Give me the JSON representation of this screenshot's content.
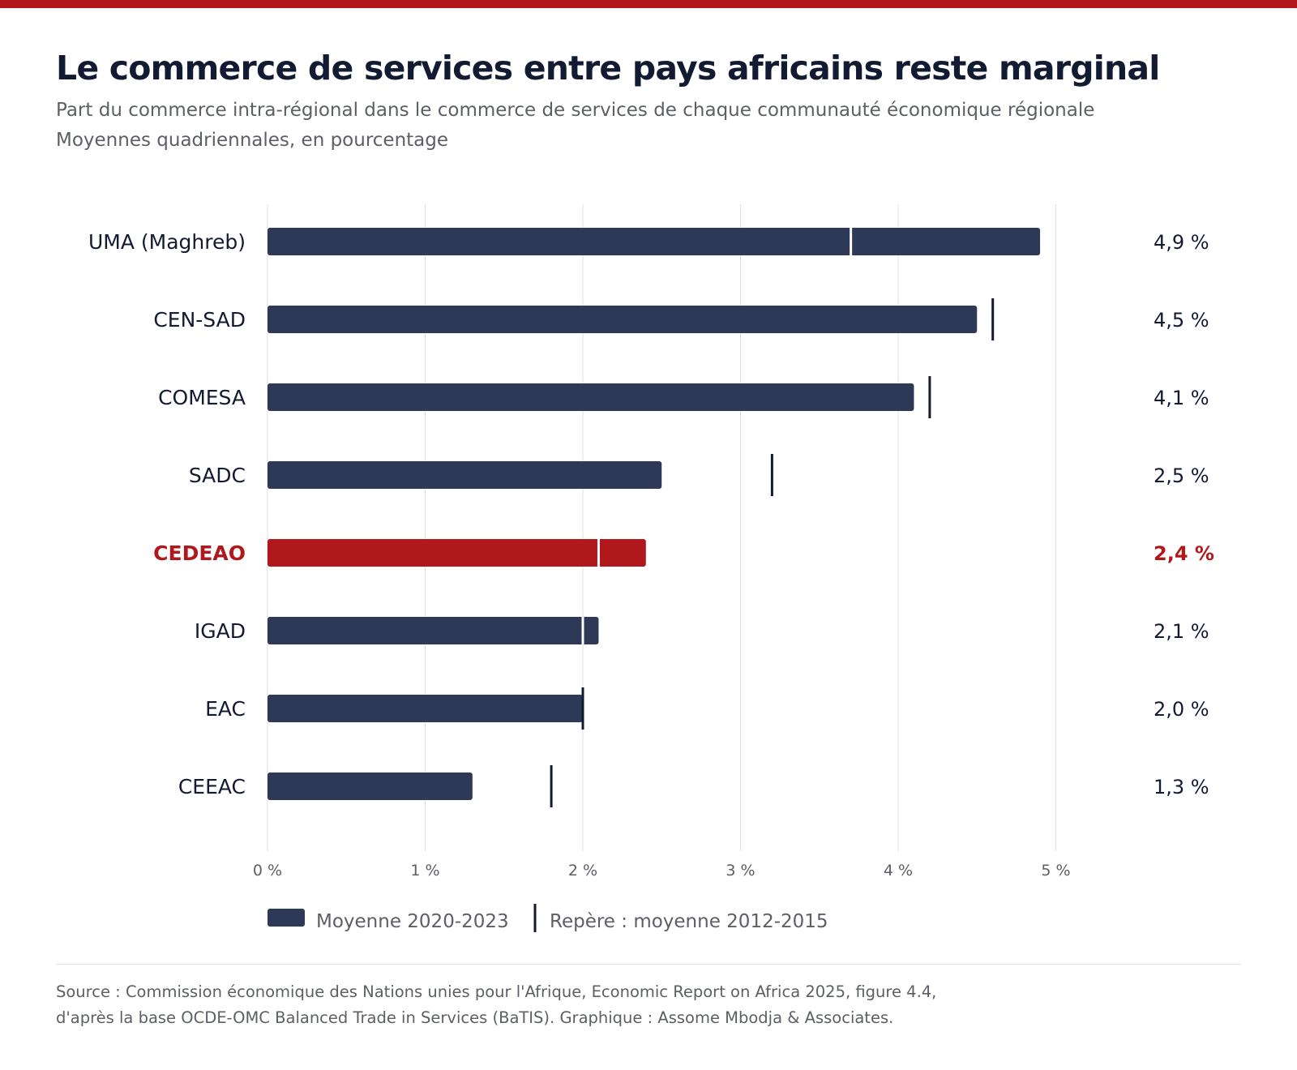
{
  "header": {
    "title": "Le commerce de services entre pays africains reste marginal",
    "subtitle_line1": "Part du commerce intra-régional dans le commerce de services de chaque communauté économique régionale",
    "subtitle_line2": "Moyennes quadriennales, en pourcentage"
  },
  "colors": {
    "top_band": "#b0181c",
    "bar": "#2d3956",
    "highlight": "#b0181c",
    "marker": "#131b33",
    "gridline": "#e0e0e0",
    "label_text": "#131b33",
    "tick_text": "#5c5f66"
  },
  "chart_data": {
    "type": "bar",
    "orientation": "horizontal",
    "categories": [
      "UMA (Maghreb)",
      "CEN-SAD",
      "COMESA",
      "SADC",
      "CEDEAO",
      "IGAD",
      "EAC",
      "CEEAC"
    ],
    "series": [
      {
        "name": "Moyenne 2020-2023",
        "values": [
          4.9,
          4.5,
          4.1,
          2.5,
          2.4,
          2.1,
          2.0,
          1.3
        ],
        "labels": [
          "4,9 %",
          "4,5 %",
          "4,1 %",
          "2,5 %",
          "2,4 %",
          "2,1 %",
          "2,0 %",
          "1,3 %"
        ]
      },
      {
        "name": "Repère : moyenne 2012-2015",
        "marker": "tick",
        "values": [
          3.7,
          4.6,
          4.2,
          3.2,
          2.1,
          2.0,
          2.0,
          1.8
        ]
      }
    ],
    "highlight": "CEDEAO",
    "xlim": [
      0,
      5
    ],
    "xticks": [
      0,
      1,
      2,
      3,
      4,
      5
    ],
    "xtick_labels": [
      "0 %",
      "1 %",
      "2 %",
      "3 %",
      "4 %",
      "5 %"
    ],
    "grid": true,
    "legend_placement": "bottom-left"
  },
  "footer": {
    "source_line1": "Source : Commission économique des Nations unies pour l'Afrique, Economic Report on Africa 2025, figure 4.4,",
    "source_line2": "d'après la base OCDE-OMC Balanced Trade in Services (BaTIS). Graphique : Assome Mbodja & Associates."
  }
}
